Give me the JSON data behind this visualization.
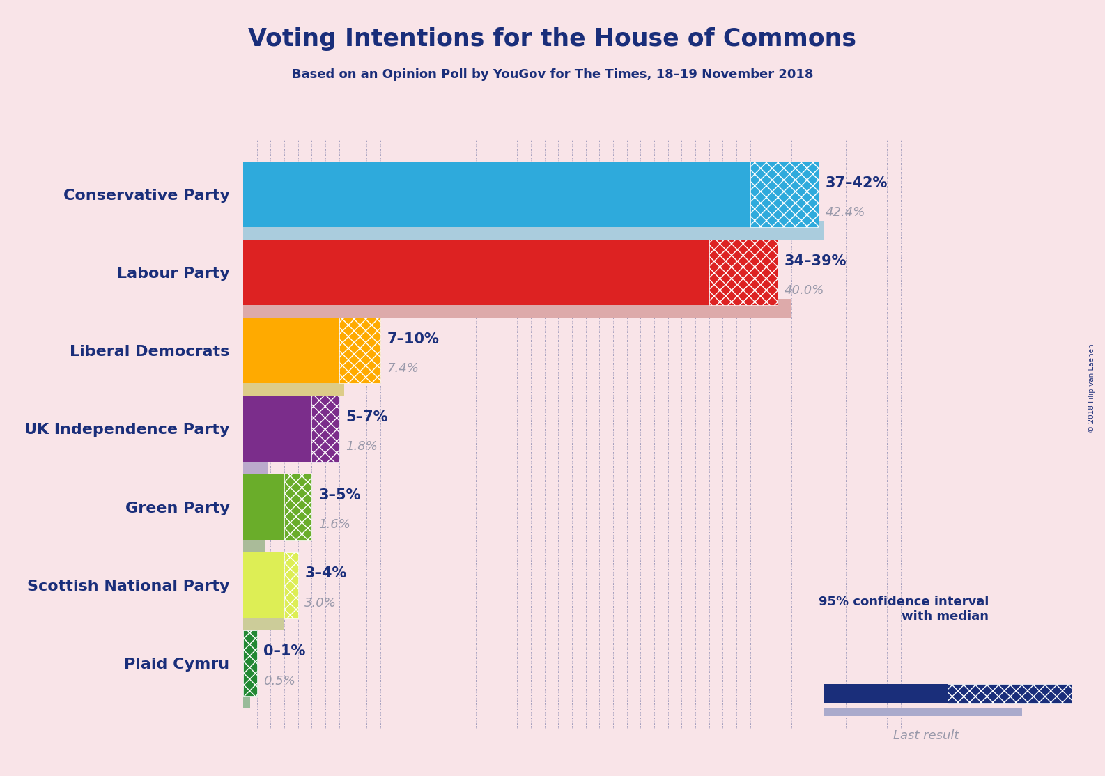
{
  "title": "Voting Intentions for the House of Commons",
  "subtitle": "Based on an Opinion Poll by YouGov for The Times, 18–19 November 2018",
  "copyright": "© 2018 Filip van Laenen",
  "background_color": "#f9e4e8",
  "parties": [
    {
      "name": "Conservative Party",
      "ci_low": 37,
      "ci_high": 42,
      "last": 42.4,
      "color": "#2EAADC",
      "last_color": "#AACCDD",
      "label": "37–42%",
      "last_label": "42.4%"
    },
    {
      "name": "Labour Party",
      "ci_low": 34,
      "ci_high": 39,
      "last": 40.0,
      "color": "#DD2222",
      "last_color": "#DDAAAA",
      "label": "34–39%",
      "last_label": "40.0%"
    },
    {
      "name": "Liberal Democrats",
      "ci_low": 7,
      "ci_high": 10,
      "last": 7.4,
      "color": "#FFAA00",
      "last_color": "#DDCC88",
      "label": "7–10%",
      "last_label": "7.4%"
    },
    {
      "name": "UK Independence Party",
      "ci_low": 5,
      "ci_high": 7,
      "last": 1.8,
      "color": "#7B2D8B",
      "last_color": "#BBAACC",
      "label": "5–7%",
      "last_label": "1.8%"
    },
    {
      "name": "Green Party",
      "ci_low": 3,
      "ci_high": 5,
      "last": 1.6,
      "color": "#6AAD2A",
      "last_color": "#AABB99",
      "label": "3–5%",
      "last_label": "1.6%"
    },
    {
      "name": "Scottish National Party",
      "ci_low": 3,
      "ci_high": 4,
      "last": 3.0,
      "color": "#DDEE55",
      "last_color": "#CCCC99",
      "label": "3–4%",
      "last_label": "3.0%"
    },
    {
      "name": "Plaid Cymru",
      "ci_low": 0,
      "ci_high": 1,
      "last": 0.5,
      "color": "#228833",
      "last_color": "#99BB99",
      "label": "0–1%",
      "last_label": "0.5%"
    }
  ],
  "x_max": 50,
  "text_color": "#1a2e7a",
  "label_color": "#1a2e7a",
  "last_label_color": "#9999AA",
  "legend_ci_color": "#1a2e7a",
  "legend_last_color": "#AAAACC"
}
